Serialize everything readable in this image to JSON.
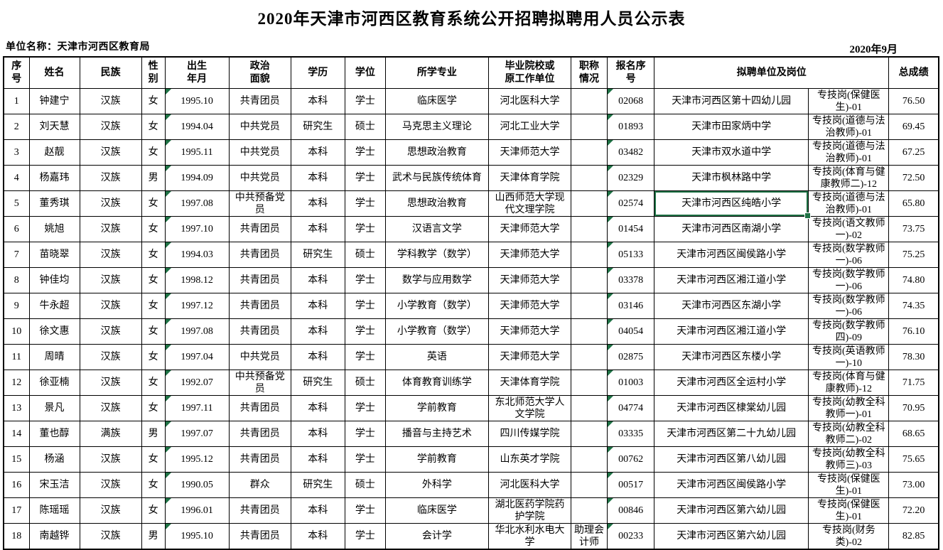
{
  "page": {
    "title": "2020年天津市河西区教育系统公开招聘拟聘用人员公示表",
    "unit_label": "单位名称：天津市河西区教育局",
    "date_label": "2020年9月"
  },
  "accent": {
    "excel_green": "#1F7245"
  },
  "table": {
    "header_cells": [
      {
        "label": "序\n号",
        "span": 1
      },
      {
        "label": "姓名",
        "span": 1
      },
      {
        "label": "民族",
        "span": 1
      },
      {
        "label": "性\n别",
        "span": 1
      },
      {
        "label": "出生\n年月",
        "span": 1
      },
      {
        "label": "政治\n面貌",
        "span": 1
      },
      {
        "label": "学历",
        "span": 1
      },
      {
        "label": "学位",
        "span": 1
      },
      {
        "label": "所学专业",
        "span": 1
      },
      {
        "label": "毕业院校或\n原工作单位",
        "span": 1
      },
      {
        "label": "职称\n情况",
        "span": 1
      },
      {
        "label": "报名序\n号",
        "span": 1
      },
      {
        "label": "拟聘单位及岗位",
        "span": 2
      },
      {
        "label": "总成绩",
        "span": 1
      }
    ],
    "column_names": [
      "no",
      "name",
      "ethnicity",
      "gender",
      "birth-date",
      "political-status",
      "education",
      "degree",
      "major",
      "school",
      "job-title",
      "registration-no",
      "proposed-unit",
      "proposed-position",
      "total-score"
    ],
    "flag_columns": [
      4,
      11
    ],
    "selected": {
      "row_index": 4,
      "col_index": 12
    },
    "rows": [
      [
        "1",
        "钟建宁",
        "汉族",
        "女",
        "1995.10",
        "共青团员",
        "本科",
        "学士",
        "临床医学",
        "河北医科大学",
        "",
        "02068",
        "天津市河西区第十四幼儿园",
        "专技岗(保健医生)-01",
        "76.50"
      ],
      [
        "2",
        "刘天慧",
        "汉族",
        "女",
        "1994.04",
        "中共党员",
        "研究生",
        "硕士",
        "马克思主义理论",
        "河北工业大学",
        "",
        "01893",
        "天津市田家炳中学",
        "专技岗(道德与法治教师)-01",
        "69.45"
      ],
      [
        "3",
        "赵靓",
        "汉族",
        "女",
        "1995.11",
        "中共党员",
        "本科",
        "学士",
        "思想政治教育",
        "天津师范大学",
        "",
        "03482",
        "天津市双水道中学",
        "专技岗(道德与法治教师)-01",
        "67.25"
      ],
      [
        "4",
        "杨嘉玮",
        "汉族",
        "男",
        "1994.09",
        "中共党员",
        "本科",
        "学士",
        "武术与民族传统体育",
        "天津体育学院",
        "",
        "02329",
        "天津市枫林路中学",
        "专技岗(体育与健康教师二)-12",
        "72.50"
      ],
      [
        "5",
        "董秀琪",
        "汉族",
        "女",
        "1997.08",
        "中共预备党员",
        "本科",
        "学士",
        "思想政治教育",
        "山西师范大学现代文理学院",
        "",
        "02574",
        "天津市河西区纯皓小学",
        "专技岗(道德与法治教师)-01",
        "65.80"
      ],
      [
        "6",
        "姚旭",
        "汉族",
        "女",
        "1997.10",
        "共青团员",
        "本科",
        "学士",
        "汉语言文学",
        "天津师范大学",
        "",
        "01454",
        "天津市河西区南湖小学",
        "专技岗(语文教师一)-02",
        "73.75"
      ],
      [
        "7",
        "苗晓翠",
        "汉族",
        "女",
        "1994.03",
        "共青团员",
        "研究生",
        "硕士",
        "学科教学（数学）",
        "天津师范大学",
        "",
        "05133",
        "天津市河西区闽侯路小学",
        "专技岗(数学教师一)-06",
        "75.25"
      ],
      [
        "8",
        "钟佳均",
        "汉族",
        "女",
        "1998.12",
        "共青团员",
        "本科",
        "学士",
        "数学与应用数学",
        "天津师范大学",
        "",
        "03378",
        "天津市河西区湘江道小学",
        "专技岗(数学教师一)-06",
        "74.80"
      ],
      [
        "9",
        "牛永超",
        "汉族",
        "女",
        "1997.12",
        "共青团员",
        "本科",
        "学士",
        "小学教育（数学）",
        "天津师范大学",
        "",
        "03146",
        "天津市河西区东湖小学",
        "专技岗(数学教师一)-06",
        "74.35"
      ],
      [
        "10",
        "徐文惠",
        "汉族",
        "女",
        "1997.08",
        "共青团员",
        "本科",
        "学士",
        "小学教育（数学）",
        "天津师范大学",
        "",
        "04054",
        "天津市河西区湘江道小学",
        "专技岗(数学教师四)-09",
        "76.10"
      ],
      [
        "11",
        "周晴",
        "汉族",
        "女",
        "1997.04",
        "中共党员",
        "本科",
        "学士",
        "英语",
        "天津师范大学",
        "",
        "02875",
        "天津市河西区东楼小学",
        "专技岗(英语教师一)-10",
        "78.30"
      ],
      [
        "12",
        "徐亚楠",
        "汉族",
        "女",
        "1992.07",
        "中共预备党员",
        "研究生",
        "硕士",
        "体育教育训练学",
        "天津体育学院",
        "",
        "01003",
        "天津市河西区全运村小学",
        "专技岗(体育与健康教师)-12",
        "71.75"
      ],
      [
        "13",
        "景凡",
        "汉族",
        "女",
        "1997.11",
        "共青团员",
        "本科",
        "学士",
        "学前教育",
        "东北师范大学人文学院",
        "",
        "04774",
        "天津市河西区棣棠幼儿园",
        "专技岗(幼教全科教师一)-01",
        "70.95"
      ],
      [
        "14",
        "董也醇",
        "满族",
        "男",
        "1997.07",
        "共青团员",
        "本科",
        "学士",
        "播音与主持艺术",
        "四川传媒学院",
        "",
        "03335",
        "天津市河西区第二十九幼儿园",
        "专技岗(幼教全科教师二)-02",
        "68.65"
      ],
      [
        "15",
        "杨涵",
        "汉族",
        "女",
        "1995.12",
        "共青团员",
        "本科",
        "学士",
        "学前教育",
        "山东英才学院",
        "",
        "00762",
        "天津市河西区第八幼儿园",
        "专技岗(幼教全科教师三)-03",
        "75.65"
      ],
      [
        "16",
        "宋玉洁",
        "汉族",
        "女",
        "1990.05",
        "群众",
        "研究生",
        "硕士",
        "外科学",
        "河北医科大学",
        "",
        "00517",
        "天津市河西区闽侯路小学",
        "专技岗(保健医生)-01",
        "73.00"
      ],
      [
        "17",
        "陈瑶瑶",
        "汉族",
        "女",
        "1996.01",
        "共青团员",
        "本科",
        "学士",
        "临床医学",
        "湖北医药学院药护学院",
        "",
        "00846",
        "天津市河西区第六幼儿园",
        "专技岗(保健医生)-01",
        "72.20"
      ],
      [
        "18",
        "南越铧",
        "汉族",
        "男",
        "1995.10",
        "共青团员",
        "本科",
        "学士",
        "会计学",
        "华北水利水电大学",
        "助理会计师",
        "00233",
        "天津市河西区第六幼儿园",
        "专技岗(财务类)-02",
        "82.85"
      ]
    ]
  }
}
